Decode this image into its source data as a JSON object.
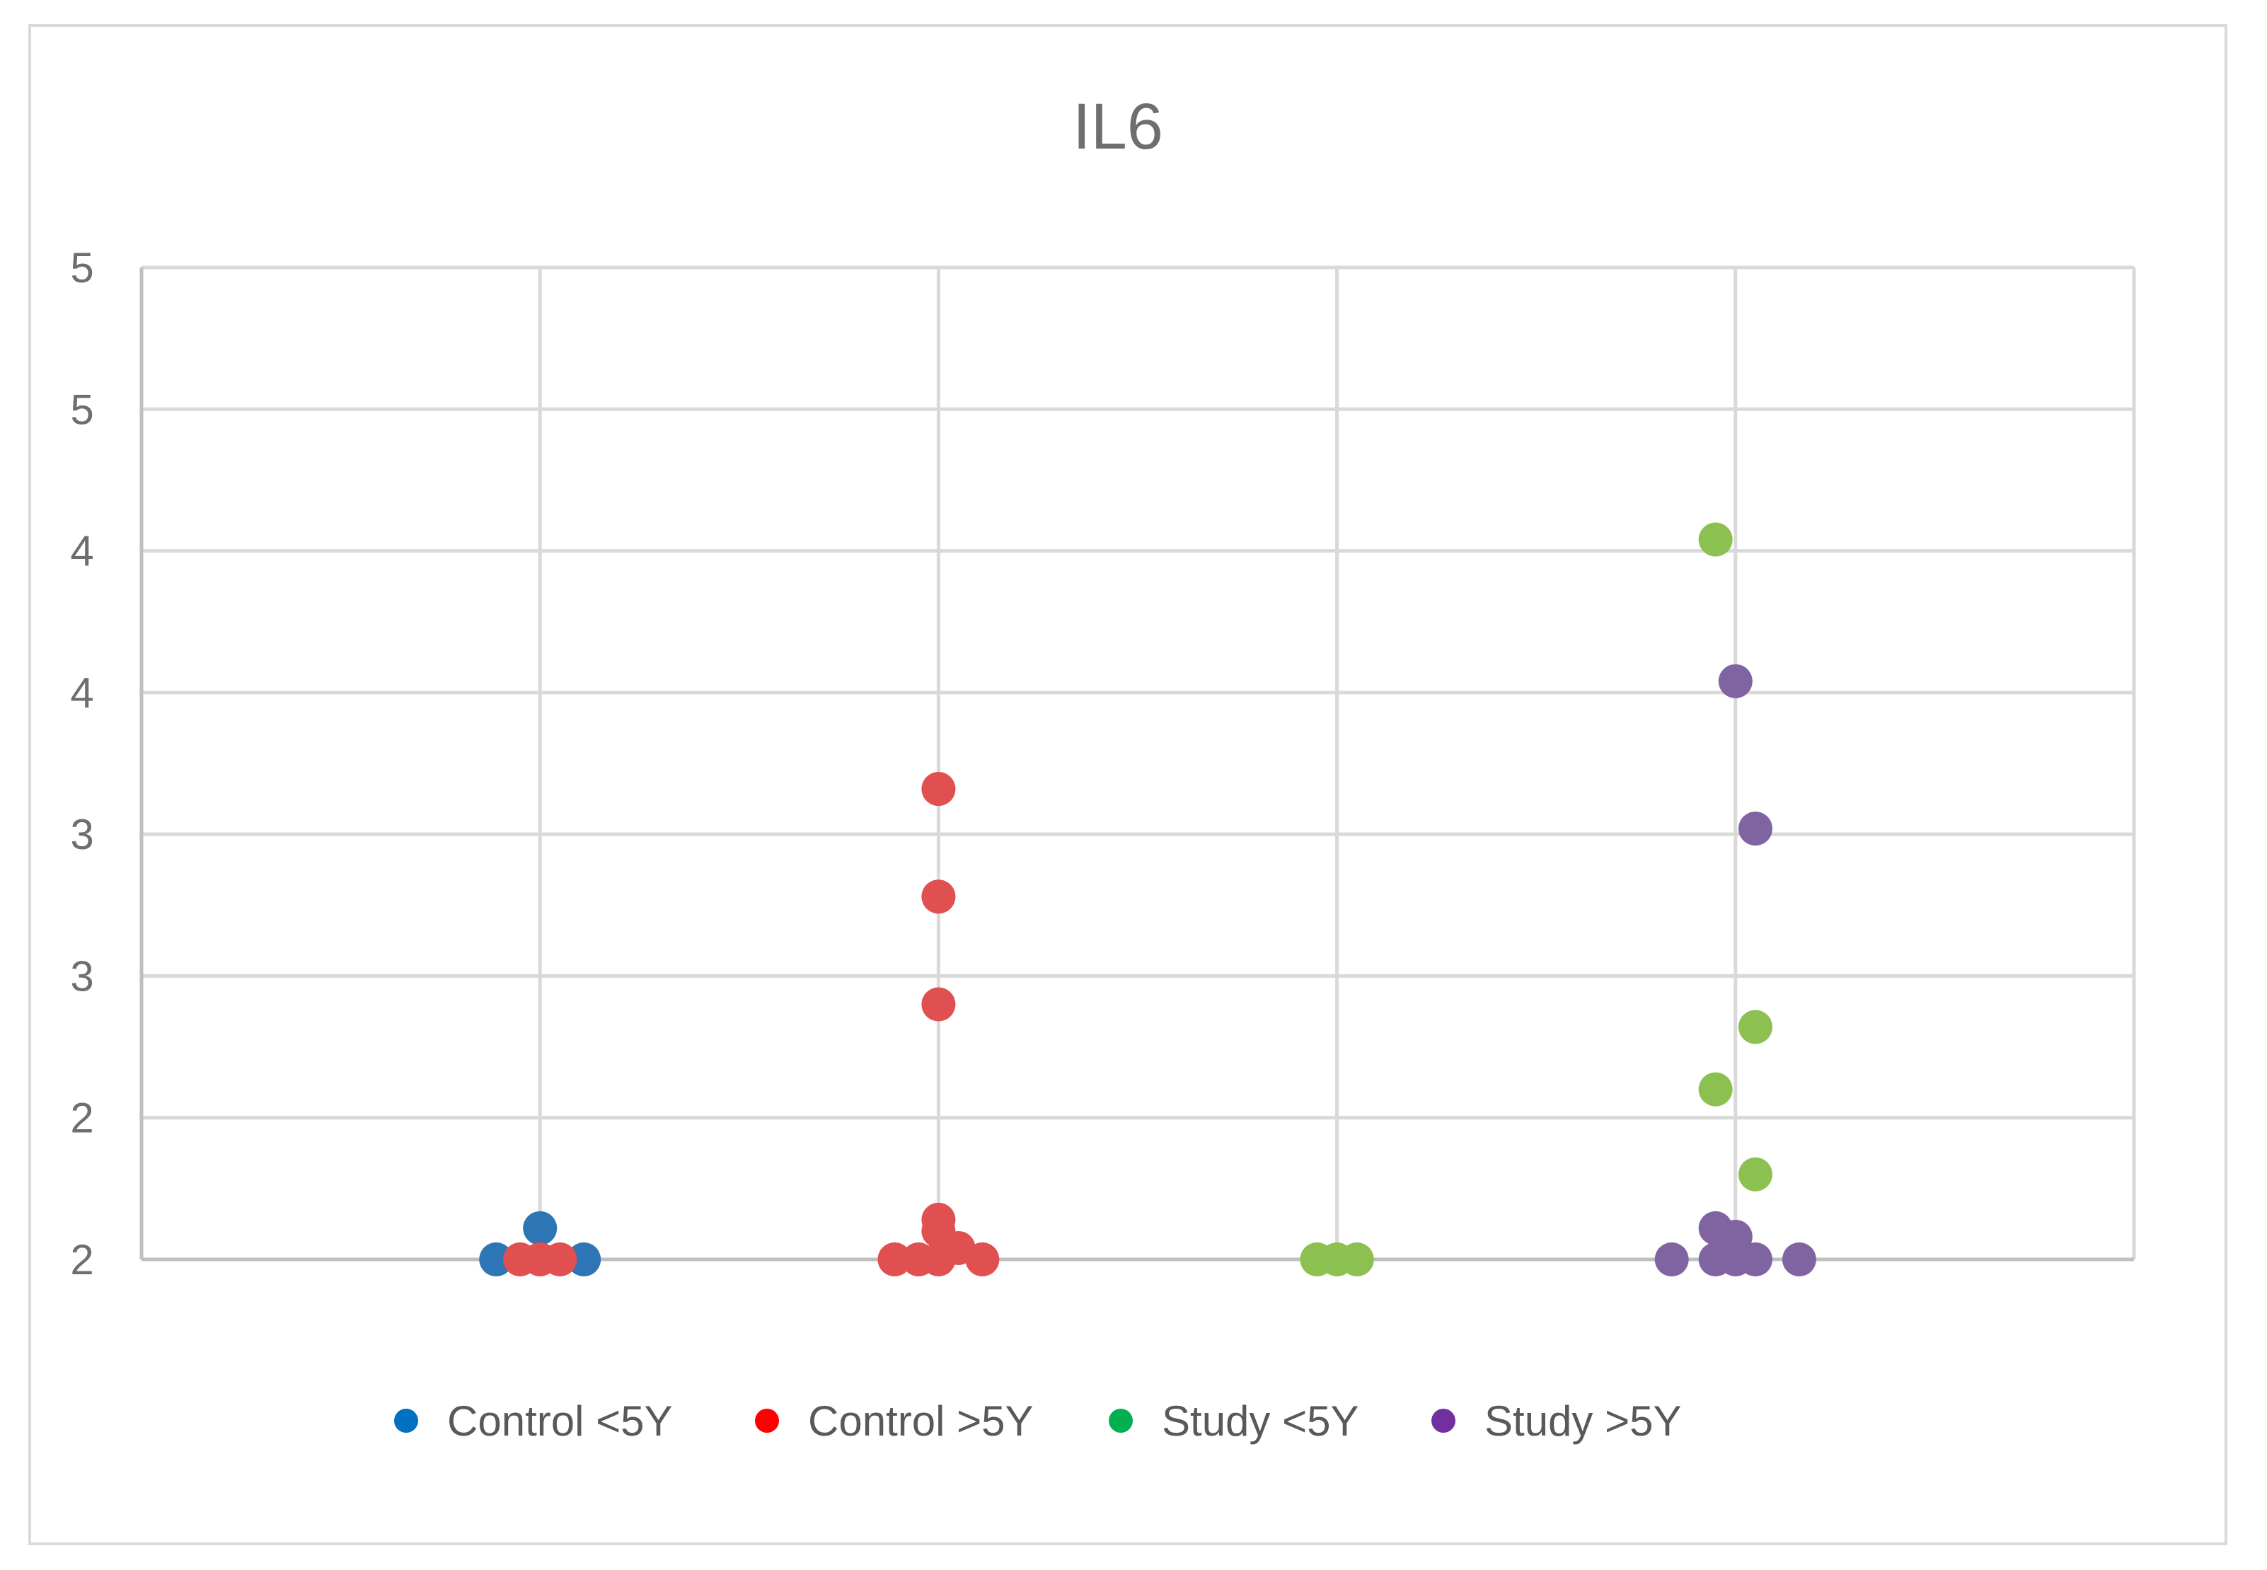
{
  "chart_data": {
    "type": "scatter",
    "title": "IL6",
    "xlabel": "",
    "ylabel": "",
    "ylim": [
      1.5,
      5
    ],
    "y_ticks": [
      {
        "value": 1.5,
        "label": "2"
      },
      {
        "value": 2.0,
        "label": "2"
      },
      {
        "value": 2.5,
        "label": "3"
      },
      {
        "value": 3.0,
        "label": "3"
      },
      {
        "value": 3.5,
        "label": "4"
      },
      {
        "value": 4.0,
        "label": "4"
      },
      {
        "value": 4.5,
        "label": "5"
      },
      {
        "value": 5.0,
        "label": "5"
      }
    ],
    "xlim": [
      0,
      5
    ],
    "x_gridlines": [
      0,
      1,
      2,
      3,
      4,
      5
    ],
    "grid": true,
    "legend_position": "bottom",
    "series": [
      {
        "name": "Control <5Y",
        "color": "#2e75b6",
        "points": [
          {
            "x": 0.89,
            "y": 1.5
          },
          {
            "x": 1.0,
            "y": 1.61
          },
          {
            "x": 1.11,
            "y": 1.5
          }
        ]
      },
      {
        "name": "Control >5Y",
        "color": "#e05050",
        "points": [
          {
            "x": 0.95,
            "y": 1.5
          },
          {
            "x": 1.0,
            "y": 1.5
          },
          {
            "x": 1.05,
            "y": 1.5
          },
          {
            "x": 1.89,
            "y": 1.5
          },
          {
            "x": 1.95,
            "y": 1.5
          },
          {
            "x": 2.0,
            "y": 1.5
          },
          {
            "x": 2.0,
            "y": 1.6
          },
          {
            "x": 2.0,
            "y": 1.64
          },
          {
            "x": 2.05,
            "y": 1.54
          },
          {
            "x": 2.11,
            "y": 1.5
          },
          {
            "x": 2.0,
            "y": 2.4
          },
          {
            "x": 2.0,
            "y": 2.78
          },
          {
            "x": 2.0,
            "y": 3.16
          }
        ]
      },
      {
        "name": "Study <5Y",
        "color": "#8cc152",
        "points": [
          {
            "x": 2.95,
            "y": 1.5
          },
          {
            "x": 3.0,
            "y": 1.5
          },
          {
            "x": 3.05,
            "y": 1.5
          },
          {
            "x": 3.95,
            "y": 4.04
          },
          {
            "x": 4.05,
            "y": 2.32
          },
          {
            "x": 3.95,
            "y": 2.1
          },
          {
            "x": 4.05,
            "y": 1.8
          }
        ]
      },
      {
        "name": "Study >5Y",
        "color": "#8064a2",
        "points": [
          {
            "x": 4.0,
            "y": 3.54
          },
          {
            "x": 4.05,
            "y": 3.02
          },
          {
            "x": 3.95,
            "y": 1.61
          },
          {
            "x": 4.0,
            "y": 1.58
          },
          {
            "x": 3.84,
            "y": 1.5
          },
          {
            "x": 3.95,
            "y": 1.5
          },
          {
            "x": 4.0,
            "y": 1.5
          },
          {
            "x": 4.05,
            "y": 1.5
          },
          {
            "x": 4.16,
            "y": 1.5
          }
        ]
      }
    ],
    "legend_marker_colors": [
      "#0070c0",
      "#ff0000",
      "#00b050",
      "#7030a0"
    ]
  }
}
